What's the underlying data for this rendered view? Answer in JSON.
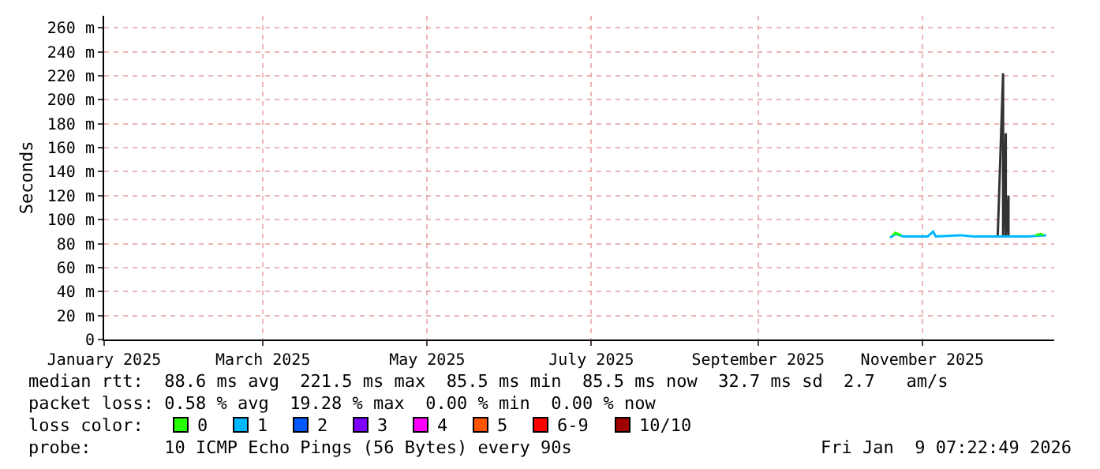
{
  "chart_data": {
    "type": "line",
    "ylabel": "Seconds",
    "xlim": [
      "2025-01-01",
      "2025-12-20"
    ],
    "ylim": [
      0,
      270
    ],
    "xticks": [
      {
        "value": "2025-01-01",
        "label": "January 2025"
      },
      {
        "value": "2025-03-01",
        "label": "March 2025"
      },
      {
        "value": "2025-05-01",
        "label": "May 2025"
      },
      {
        "value": "2025-07-01",
        "label": "July 2025"
      },
      {
        "value": "2025-09-01",
        "label": "September 2025"
      },
      {
        "value": "2025-11-01",
        "label": "November 2025"
      }
    ],
    "yticks": [
      0,
      {
        "value": 20,
        "label": "20 m"
      },
      {
        "value": 40,
        "label": "40 m"
      },
      {
        "value": 60,
        "label": "60 m"
      },
      {
        "value": 80,
        "label": "80 m"
      },
      {
        "value": 100,
        "label": "100 m"
      },
      {
        "value": 120,
        "label": "120 m"
      },
      {
        "value": 140,
        "label": "140 m"
      },
      {
        "value": 160,
        "label": "160 m"
      },
      {
        "value": 180,
        "label": "180 m"
      },
      {
        "value": 200,
        "label": "200 m"
      },
      {
        "value": 220,
        "label": "220 m"
      },
      {
        "value": 240,
        "label": "240 m"
      },
      {
        "value": 260,
        "label": "260 m"
      }
    ],
    "grid": true,
    "legend": "bottom",
    "series": [
      {
        "color": "#333333",
        "x": [
          "2025-11-29",
          "2025-12-01",
          "2025-12-01",
          "2025-12-02",
          "2025-12-02",
          "2025-12-03",
          "2025-12-03",
          "2025-12-04"
        ],
        "values": [
          86,
          222,
          86,
          172,
          86,
          120,
          86,
          86
        ]
      },
      {
        "name": "1",
        "color": "#00b8ff",
        "x": [
          "2025-10-20",
          "2025-10-22",
          "2025-10-25",
          "2025-11-03",
          "2025-11-05",
          "2025-11-06",
          "2025-11-15",
          "2025-11-20",
          "2025-12-01",
          "2025-12-10",
          "2025-12-17"
        ],
        "values": [
          85,
          88,
          86,
          86,
          90,
          86,
          87,
          86,
          86,
          86,
          87
        ]
      },
      {
        "name": "0",
        "color": "#26ff00",
        "x": [
          "2025-10-21",
          "2025-10-22",
          "2025-10-24",
          "2025-11-01",
          "2025-12-13",
          "2025-12-15",
          "2025-12-16"
        ],
        "values": [
          87,
          89,
          87,
          null,
          87,
          88,
          87
        ]
      },
      {
        "name": "2",
        "color": "#0059ff"
      },
      {
        "name": "3",
        "color": "#7e00ff"
      },
      {
        "name": "4",
        "color": "#ff00ff"
      },
      {
        "name": "5",
        "color": "#ff5500"
      },
      {
        "name": "6-9",
        "color": "#ff0000"
      },
      {
        "name": "10/10",
        "color": "#a10000"
      }
    ],
    "legend_title": "loss color:",
    "annotations": [
      "median rtt:  88.6 ms avg  221.5 ms max  85.5 ms min  85.5 ms now  32.7 ms sd  2.7   am/s",
      "packet loss: 0.58 % avg  19.28 % max  0.00 % min  0.00 % now",
      "probe:       10 ICMP Echo Pings (56 Bytes) every 90s",
      "Fri Jan  9 07:22:49 2026"
    ]
  }
}
